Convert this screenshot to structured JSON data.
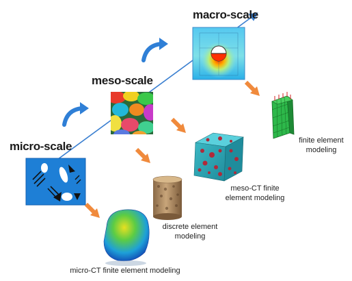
{
  "scales": {
    "macro": "macro-scale",
    "meso": "meso-scale",
    "micro": "micro-scale"
  },
  "captions": {
    "fem_line1": "finite element",
    "fem_line2": "modeling",
    "meso_ct_line1": "meso-CT finite",
    "meso_ct_line2": "element modeling",
    "dem_line1": "discrete element",
    "dem_line2": "modeling",
    "micro_ct": "micro-CT finite element modeling"
  },
  "colors": {
    "scale_axis": "#3a7fd0",
    "cycle_arrow": "#2f7fd6",
    "down_arrow": "#f08a3c",
    "micro_panel": "#1e7fd6",
    "mesh_green": "#2db84a"
  },
  "icons": {
    "cycle": "curved-arrow-icon",
    "down": "orange-arrow-icon"
  }
}
